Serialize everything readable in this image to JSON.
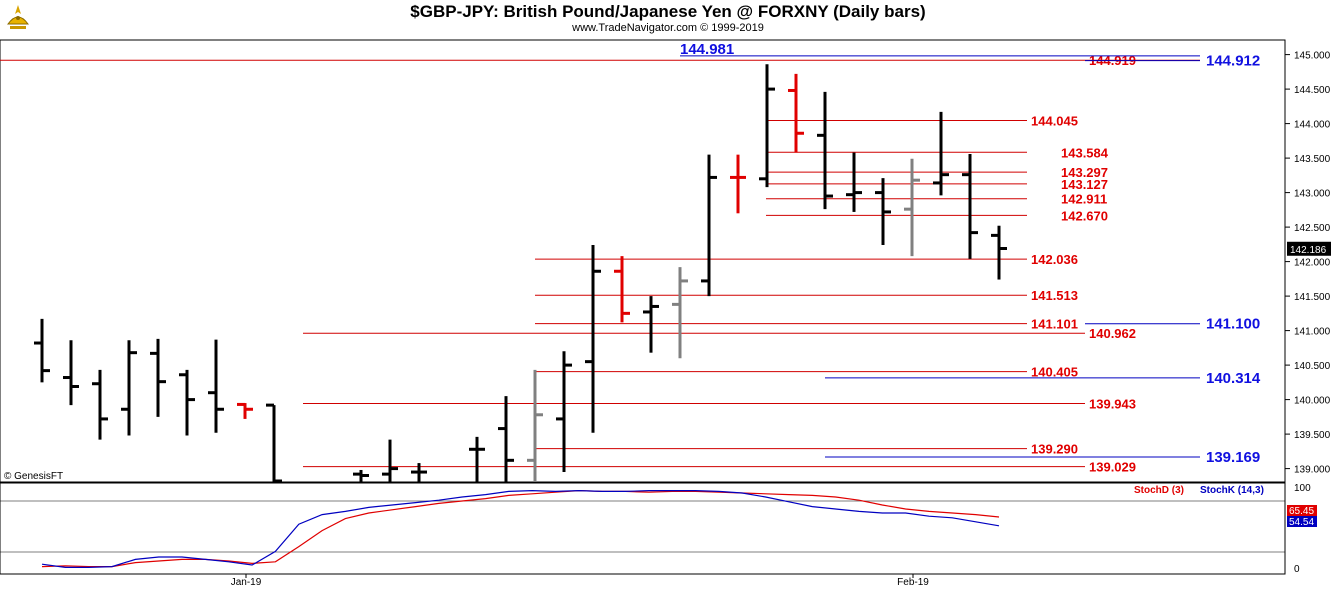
{
  "header": {
    "title": "$GBP-JPY:  British Pound/Japanese Yen @ FORXNY  (Daily bars)",
    "subtitle": "www.TradeNavigator.com © 1999-2019"
  },
  "credit": "© GenesisFT",
  "chart_data": [
    {
      "type": "ohlc-bar",
      "title": "$GBP-JPY:  British Pound/Japanese Yen @ FORXNY  (Daily bars)",
      "ylim": [
        138.78,
        145.2
      ],
      "y_ticks": [
        "139.000",
        "139.500",
        "140.000",
        "140.500",
        "141.000",
        "141.500",
        "142.000",
        "142.500",
        "143.000",
        "143.500",
        "144.000",
        "144.500",
        "145.000"
      ],
      "x_labels": [
        "Jan-19",
        "Feb-19"
      ],
      "last_price": "142.186",
      "bars": [
        {
          "o": 140.82,
          "h": 141.17,
          "l": 140.25,
          "c": 140.42,
          "color": "black"
        },
        {
          "o": 140.32,
          "h": 140.86,
          "l": 139.92,
          "c": 140.19,
          "color": "black"
        },
        {
          "o": 140.23,
          "h": 140.43,
          "l": 139.42,
          "c": 139.72,
          "color": "black"
        },
        {
          "o": 139.86,
          "h": 140.86,
          "l": 139.48,
          "c": 140.68,
          "color": "black"
        },
        {
          "o": 140.67,
          "h": 140.88,
          "l": 139.75,
          "c": 140.26,
          "color": "black"
        },
        {
          "o": 140.36,
          "h": 140.43,
          "l": 139.48,
          "c": 140.0,
          "color": "black"
        },
        {
          "o": 140.1,
          "h": 140.87,
          "l": 139.52,
          "c": 139.86,
          "color": "black"
        },
        {
          "o": 139.93,
          "h": 139.95,
          "l": 139.72,
          "c": 139.86,
          "color": "red"
        },
        {
          "o": 139.92,
          "h": 139.92,
          "l": 138.78,
          "c": 138.78,
          "color": "black"
        },
        {
          "o": 138.92,
          "h": 138.98,
          "l": 138.78,
          "c": 138.9,
          "color": "black"
        },
        {
          "o": 138.92,
          "h": 139.42,
          "l": 138.8,
          "c": 139.0,
          "color": "black"
        },
        {
          "o": 138.95,
          "h": 139.08,
          "l": 138.78,
          "c": 138.95,
          "color": "black"
        },
        {
          "o": 139.28,
          "h": 139.46,
          "l": 138.8,
          "c": 139.28,
          "color": "black"
        },
        {
          "o": 139.58,
          "h": 140.05,
          "l": 138.78,
          "c": 139.12,
          "color": "black"
        },
        {
          "o": 139.12,
          "h": 140.43,
          "l": 138.82,
          "c": 139.78,
          "color": "gray"
        },
        {
          "o": 139.72,
          "h": 140.7,
          "l": 138.95,
          "c": 140.5,
          "color": "black"
        },
        {
          "o": 140.55,
          "h": 142.24,
          "l": 139.52,
          "c": 141.86,
          "color": "black"
        },
        {
          "o": 141.86,
          "h": 142.08,
          "l": 141.12,
          "c": 141.25,
          "color": "red"
        },
        {
          "o": 141.27,
          "h": 141.5,
          "l": 140.68,
          "c": 141.35,
          "color": "black"
        },
        {
          "o": 141.38,
          "h": 141.92,
          "l": 140.6,
          "c": 141.72,
          "color": "gray"
        },
        {
          "o": 141.72,
          "h": 143.55,
          "l": 141.5,
          "c": 143.22,
          "color": "black"
        },
        {
          "o": 143.22,
          "h": 143.55,
          "l": 142.7,
          "c": 143.22,
          "color": "red"
        },
        {
          "o": 143.2,
          "h": 144.86,
          "l": 143.08,
          "c": 144.5,
          "color": "black"
        },
        {
          "o": 144.48,
          "h": 144.72,
          "l": 143.58,
          "c": 143.86,
          "color": "red"
        },
        {
          "o": 143.83,
          "h": 144.46,
          "l": 142.76,
          "c": 142.95,
          "color": "black"
        },
        {
          "o": 142.97,
          "h": 143.58,
          "l": 142.72,
          "c": 143.0,
          "color": "black"
        },
        {
          "o": 143.0,
          "h": 143.21,
          "l": 142.24,
          "c": 142.72,
          "color": "black"
        },
        {
          "o": 142.76,
          "h": 143.49,
          "l": 142.08,
          "c": 143.18,
          "color": "gray"
        },
        {
          "o": 143.14,
          "h": 144.17,
          "l": 142.96,
          "c": 143.26,
          "color": "black"
        },
        {
          "o": 143.26,
          "h": 143.56,
          "l": 142.04,
          "c": 142.42,
          "color": "black"
        },
        {
          "o": 142.38,
          "h": 142.52,
          "l": 141.74,
          "c": 142.19,
          "color": "black"
        }
      ],
      "red_levels": [
        "144.919",
        "144.045",
        "143.584",
        "143.297",
        "143.127",
        "142.911",
        "142.670",
        "142.036",
        "141.513",
        "141.101",
        "140.962",
        "140.405",
        "139.943",
        "139.290",
        "139.029"
      ],
      "blue_levels": [
        "144.981",
        "144.912",
        "141.100",
        "140.314",
        "139.169"
      ]
    },
    {
      "type": "line",
      "title": "",
      "ylim": [
        0,
        100
      ],
      "y_ticks": [
        "0",
        "100"
      ],
      "series": [
        {
          "name": "StochD (3)",
          "color": "#e00000",
          "last": "65.45",
          "values": [
            3,
            4,
            3,
            3,
            8,
            10,
            12,
            12,
            10,
            7,
            9,
            28,
            48,
            63,
            70,
            74,
            78,
            82,
            85,
            88,
            92,
            94,
            96,
            98,
            97,
            97,
            96,
            97,
            97,
            96,
            95,
            94,
            93,
            92,
            90,
            86,
            80,
            75,
            72,
            70,
            68,
            65
          ]
        },
        {
          "name": "StochK (14,3)",
          "color": "#0000c0",
          "last": "54.54",
          "values": [
            6,
            2,
            2,
            3,
            12,
            15,
            15,
            12,
            9,
            5,
            22,
            56,
            68,
            72,
            77,
            80,
            83,
            86,
            90,
            93,
            97,
            98,
            97,
            98,
            97,
            97,
            98,
            98,
            98,
            97,
            95,
            90,
            84,
            78,
            75,
            72,
            70,
            70,
            66,
            64,
            59,
            54
          ]
        }
      ]
    }
  ]
}
